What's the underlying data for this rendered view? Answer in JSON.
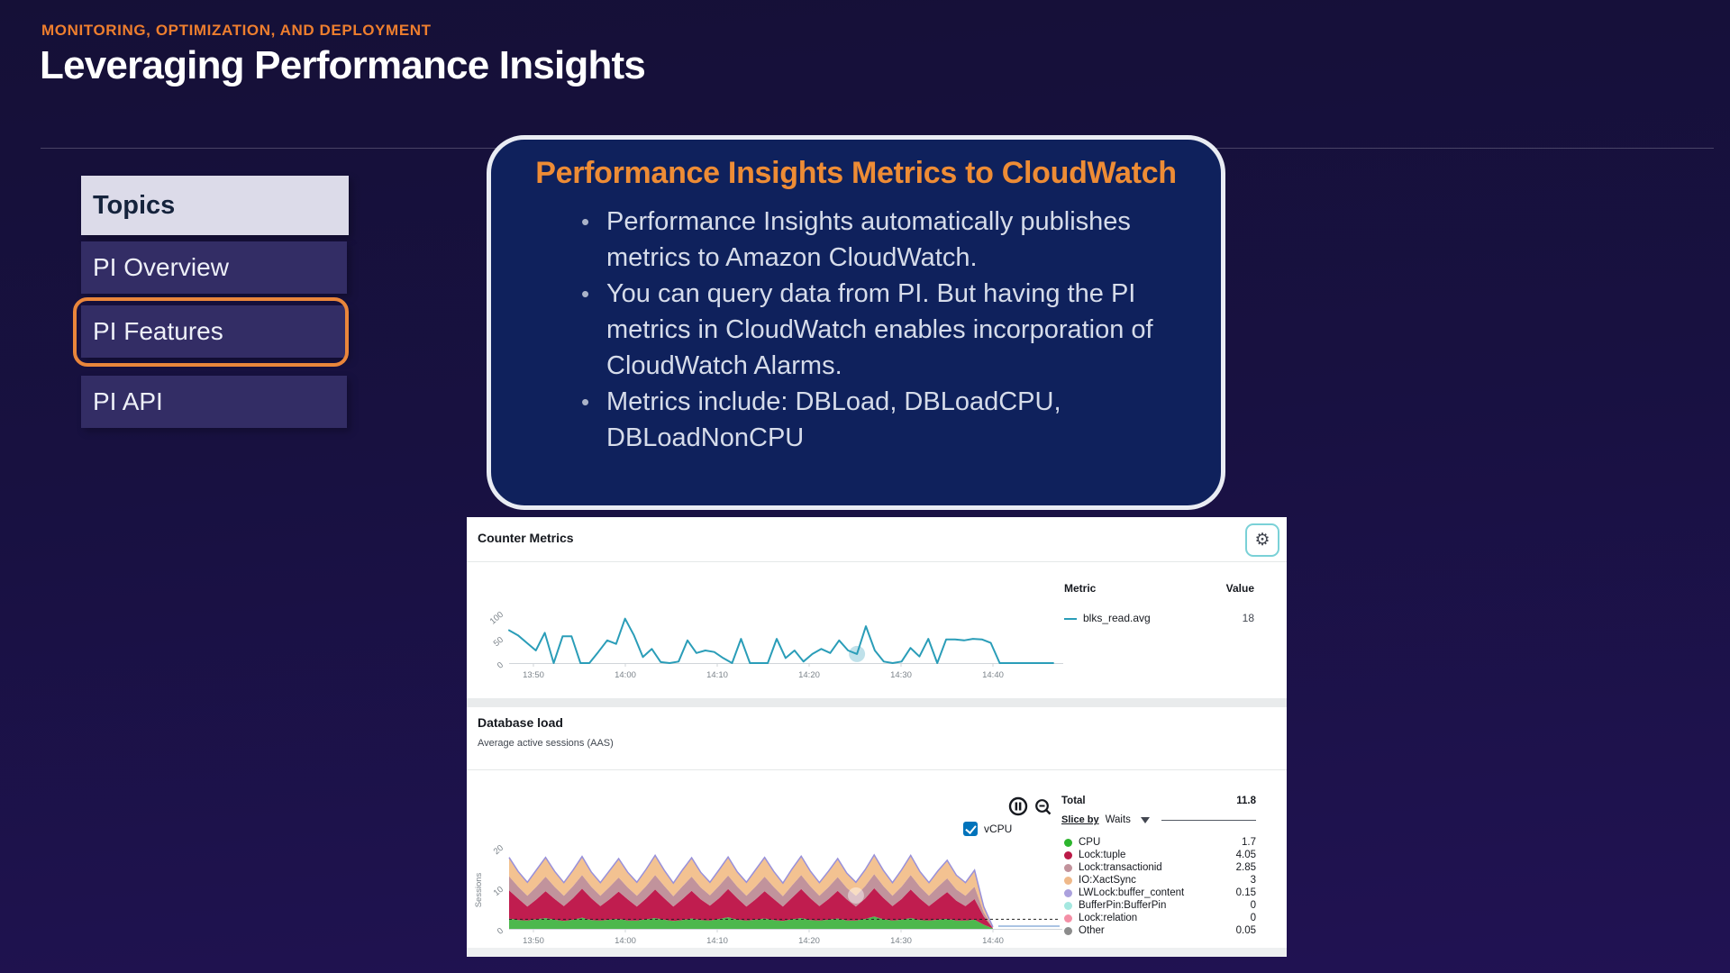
{
  "page": {
    "eyebrow": "MONITORING, OPTIMIZATION, AND DEPLOYMENT",
    "title": "Leveraging Performance Insights"
  },
  "sidebar": {
    "header": "Topics",
    "items": [
      {
        "label": "PI Overview",
        "active": false
      },
      {
        "label": "PI Features",
        "active": true
      },
      {
        "label": "PI API",
        "active": false
      }
    ],
    "active_ring_color": "#ea863b"
  },
  "callout": {
    "title": "Performance Insights Metrics to CloudWatch",
    "title_color": "#ee8c35",
    "bullets": [
      "Performance Insights automatically publishes metrics to Amazon CloudWatch.",
      "You can query data from PI. But having the PI metrics in CloudWatch enables incorporation of CloudWatch Alarms.",
      "Metrics include: DBLoad, DBLoadCPU, DBLoadNonCPU"
    ]
  },
  "console": {
    "counter_panel": {
      "title": "Counter Metrics",
      "gear_icon_glyph": "⚙",
      "legend": {
        "metric_header": "Metric",
        "value_header": "Value",
        "rows": [
          {
            "name": "blks_read.avg",
            "value": "18",
            "color": "#2a9db8"
          }
        ]
      }
    },
    "db_panel": {
      "title": "Database load",
      "subtitle": "Average active sessions (AAS)",
      "vcpu_checkbox_label": "vCPU",
      "vcpu_checkbox_checked": true,
      "legend": {
        "total_label": "Total",
        "total_value": "11.8",
        "slice_by_label": "Slice by",
        "slice_by_value": "Waits",
        "rows": [
          {
            "name": "CPU",
            "value": "1.7",
            "color": "#2db52e"
          },
          {
            "name": "Lock:tuple",
            "value": "4.05",
            "color": "#bb1a47"
          },
          {
            "name": "Lock:transactionid",
            "value": "2.85",
            "color": "#c2939c"
          },
          {
            "name": "IO:XactSync",
            "value": "3",
            "color": "#efb98a"
          },
          {
            "name": "LWLock:buffer_content",
            "value": "0.15",
            "color": "#aba1dd"
          },
          {
            "name": "BufferPin:BufferPin",
            "value": "0",
            "color": "#a5e8e0"
          },
          {
            "name": "Lock:relation",
            "value": "0",
            "color": "#f48fa6"
          },
          {
            "name": "Other",
            "value": "0.05",
            "color": "#8c8c8c"
          }
        ]
      }
    }
  },
  "chart_data": [
    {
      "id": "counter_metrics",
      "type": "line",
      "title": "Counter Metrics",
      "x_ticks": [
        "13:50",
        "14:00",
        "14:10",
        "14:20",
        "14:30",
        "14:40"
      ],
      "y_ticks": [
        "0",
        "50",
        "100"
      ],
      "ylim": [
        0,
        100
      ],
      "grid": false,
      "hover_index": 39,
      "series": [
        {
          "name": "blks_read.avg",
          "color": "#2a9db8",
          "values": [
            65,
            55,
            40,
            25,
            60,
            0,
            53,
            53,
            0,
            0,
            22,
            45,
            38,
            88,
            55,
            12,
            28,
            2,
            0,
            3,
            45,
            20,
            25,
            22,
            10,
            0,
            48,
            0,
            0,
            0,
            48,
            10,
            25,
            3,
            18,
            28,
            20,
            45,
            25,
            18,
            73,
            25,
            3,
            0,
            3,
            30,
            13,
            48,
            0,
            47,
            47,
            45,
            48,
            47,
            40,
            0,
            0,
            0,
            0,
            0,
            0,
            0
          ]
        }
      ]
    },
    {
      "id": "database_load",
      "type": "area",
      "title": "Database load",
      "ylabel": "Sessions",
      "x_ticks": [
        "13:50",
        "14:00",
        "14:10",
        "14:20",
        "14:30",
        "14:40"
      ],
      "y_ticks": [
        "0",
        "10",
        "20"
      ],
      "ylim": [
        0,
        20
      ],
      "legend_position": "right",
      "vcpu_line": 2.3,
      "end_line_color": "#8fb0dc",
      "hover_index": 38,
      "series": [
        {
          "name": "CPU",
          "color": "#4db84d",
          "values": [
            2.5,
            2.1,
            2.0,
            2.3,
            2.6,
            2.2,
            1.9,
            2.2,
            2.7,
            2.1,
            2.0,
            2.2,
            2.4,
            2.0,
            2.0,
            2.3,
            2.6,
            2.2,
            1.9,
            2.1,
            2.5,
            2.1,
            2.0,
            2.4,
            2.8,
            2.2,
            2.0,
            2.2,
            2.5,
            2.1,
            1.9,
            2.3,
            2.6,
            2.1,
            2.0,
            2.2,
            2.5,
            2.0,
            2.0,
            2.4,
            3.0,
            2.3,
            2.0,
            2.2,
            2.6,
            2.1,
            2.0,
            2.2,
            2.4,
            2.0,
            2.0,
            2.2,
            1.0,
            0.1
          ]
        },
        {
          "name": "Lock:tuple",
          "color": "#c01d4f",
          "values": [
            6.8,
            5.2,
            3.4,
            4.8,
            6.5,
            5.0,
            3.6,
            5.2,
            7.0,
            5.3,
            3.5,
            4.9,
            6.6,
            5.1,
            3.4,
            5.0,
            6.9,
            5.2,
            3.5,
            5.1,
            6.7,
            5.0,
            3.6,
            5.0,
            6.8,
            5.2,
            3.4,
            4.9,
            6.6,
            5.1,
            3.5,
            5.2,
            7.0,
            5.3,
            3.5,
            5.0,
            6.7,
            5.1,
            3.4,
            4.9,
            6.8,
            5.2,
            3.5,
            5.0,
            6.9,
            5.2,
            3.5,
            5.0,
            6.5,
            4.8,
            3.5,
            5.0,
            2.0,
            0.1
          ]
        },
        {
          "name": "Lock:transactionid",
          "color": "#c1939c",
          "values": [
            3.4,
            2.9,
            2.6,
            3.1,
            3.5,
            2.9,
            2.5,
            2.9,
            3.3,
            2.8,
            2.5,
            3.0,
            3.4,
            2.9,
            2.6,
            3.0,
            3.5,
            3.0,
            2.5,
            3.1,
            3.4,
            2.9,
            2.5,
            3.0,
            3.3,
            2.8,
            2.6,
            3.1,
            3.5,
            2.9,
            2.5,
            3.0,
            3.4,
            2.9,
            2.5,
            2.9,
            3.3,
            2.8,
            2.6,
            3.0,
            3.4,
            2.9,
            2.5,
            3.0,
            3.5,
            2.9,
            2.5,
            3.0,
            3.3,
            2.7,
            2.5,
            3.0,
            1.0,
            0.05
          ]
        },
        {
          "name": "IO:XactSync",
          "color": "#f3c291",
          "values": [
            4.4,
            3.5,
            3.1,
            3.9,
            4.5,
            3.6,
            3.0,
            3.7,
            4.3,
            3.4,
            3.0,
            3.8,
            4.4,
            3.5,
            3.1,
            3.9,
            4.6,
            3.6,
            3.0,
            3.8,
            4.4,
            3.5,
            3.0,
            3.7,
            4.3,
            3.4,
            3.1,
            3.9,
            4.5,
            3.6,
            3.0,
            3.8,
            4.4,
            3.5,
            3.0,
            3.7,
            4.3,
            3.4,
            3.1,
            3.8,
            4.5,
            3.6,
            3.0,
            3.9,
            4.6,
            3.5,
            3.0,
            3.7,
            4.2,
            3.3,
            3.0,
            3.8,
            1.2,
            0.05
          ]
        },
        {
          "name": "LWLock:buffer_content",
          "color": "#9890da",
          "constant": 0.15
        }
      ]
    }
  ]
}
